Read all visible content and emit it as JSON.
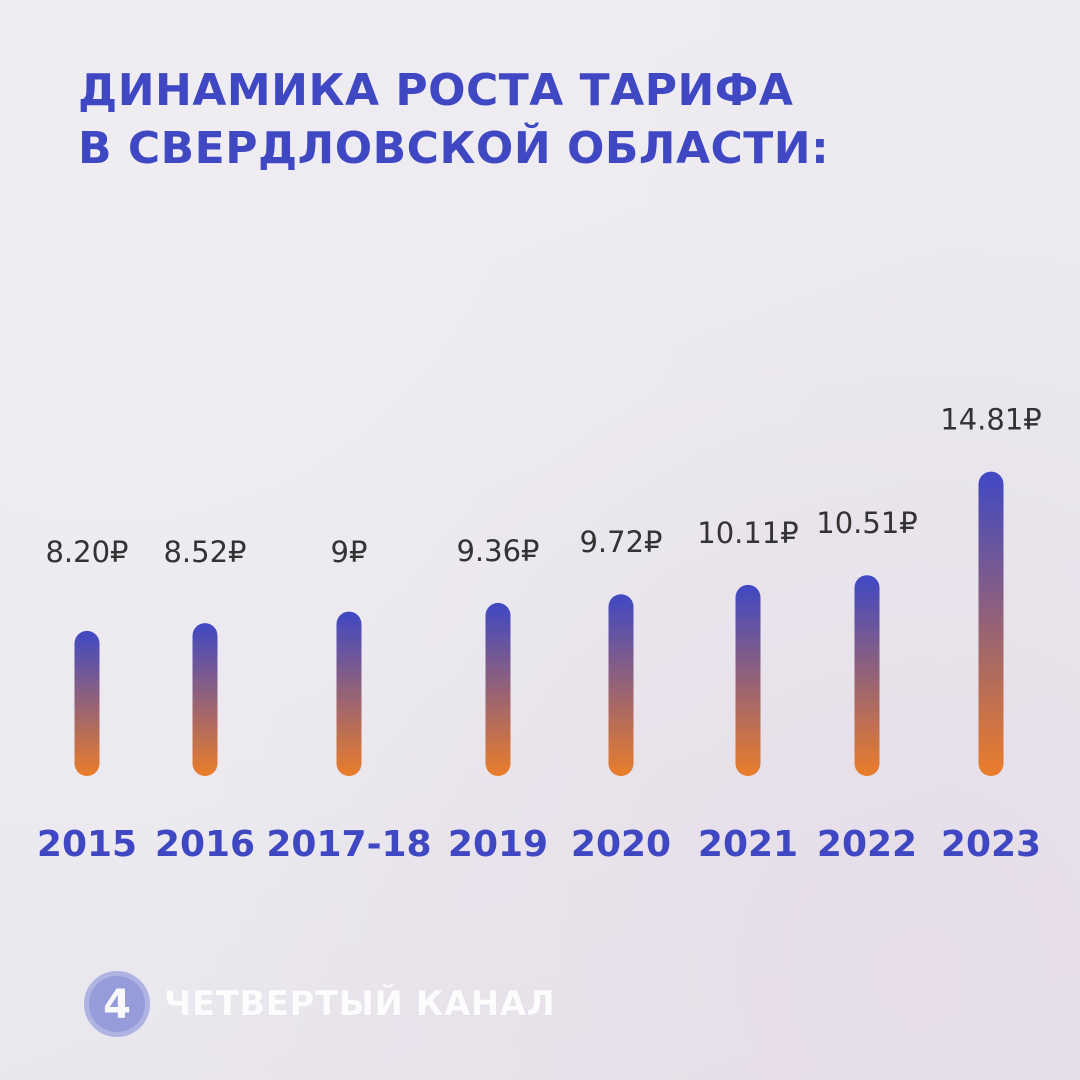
{
  "title": {
    "line1": "ДИНАМИКА РОСТА ТАРИФА",
    "line2": "В СВЕРДЛОВСКОЙ ОБЛАСТИ:"
  },
  "chart_data": {
    "type": "bar",
    "categories": [
      "2015",
      "2016",
      "2017-18",
      "2019",
      "2020",
      "2021",
      "2022",
      "2023"
    ],
    "values": [
      8.2,
      8.52,
      9,
      9.36,
      9.72,
      10.11,
      10.51,
      14.81
    ],
    "value_labels": [
      "8.20₽",
      "8.52₽",
      "9₽",
      "9.36₽",
      "9.72₽",
      "10.11₽",
      "10.51₽",
      "14.81₽"
    ],
    "currency": "₽",
    "colors": {
      "bar_top": "#3f48c4",
      "bar_bottom": "#ea7d2a",
      "category": "#3f48c2",
      "value_label": "#333333"
    },
    "grid": false,
    "legend": "none"
  },
  "logo": {
    "mark": "4",
    "text": "ЧЕТВЕРТЫЙ КАНАЛ"
  }
}
